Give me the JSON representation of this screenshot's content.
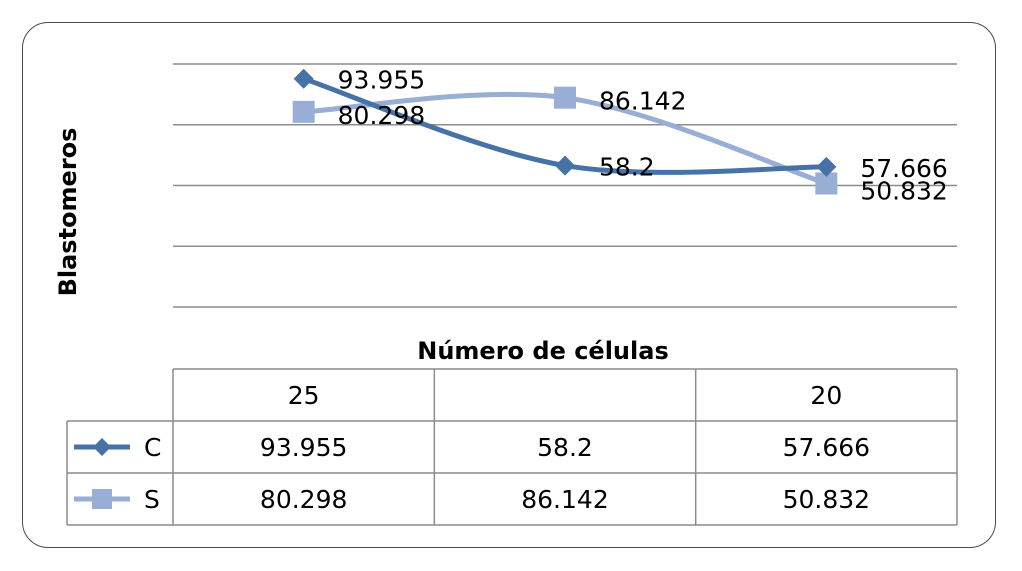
{
  "chart_data": {
    "type": "line",
    "ylabel": "Blastomeros",
    "xlabel": "Número de células",
    "categories": [
      "25",
      "",
      "20"
    ],
    "ylim": [
      0,
      100
    ],
    "grid": true,
    "smooth": true,
    "series": [
      {
        "name": "C",
        "values": [
          93.955,
          58.2,
          57.666
        ],
        "labels": [
          "93.955",
          "58.2",
          "57.666"
        ],
        "color": "#4672a8",
        "marker": "diamond"
      },
      {
        "name": "S",
        "values": [
          80.298,
          86.142,
          50.832
        ],
        "labels": [
          "80.298",
          "86.142",
          "50.832"
        ],
        "color": "#98aed4",
        "marker": "square"
      }
    ],
    "data_table": true
  }
}
